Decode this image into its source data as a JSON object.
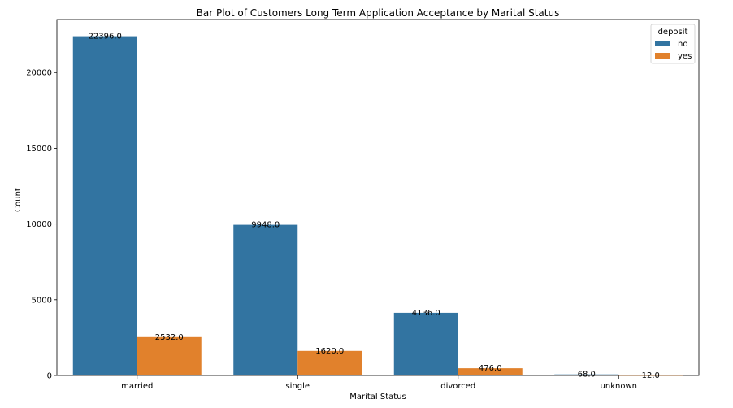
{
  "chart_data": {
    "type": "bar",
    "title": "Bar Plot of Customers Long Term Application Acceptance by Marital Status",
    "xlabel": "Marital Status",
    "ylabel": "Count",
    "categories": [
      "married",
      "single",
      "divorced",
      "unknown"
    ],
    "series": [
      {
        "name": "no",
        "color": "#3274a1",
        "values": [
          22396,
          9948,
          4136,
          68
        ]
      },
      {
        "name": "yes",
        "color": "#e1812c",
        "values": [
          2532,
          1620,
          476,
          12
        ]
      }
    ],
    "data_labels": [
      [
        "22396.0",
        "9948.0",
        "4136.0",
        "68.0"
      ],
      [
        "2532.0",
        "1620.0",
        "476.0",
        "12.0"
      ]
    ],
    "ylim": [
      0,
      23500
    ],
    "yticks": [
      0,
      5000,
      10000,
      15000,
      20000
    ],
    "grid": false,
    "legend": {
      "title": "deposit",
      "position": "top-right"
    }
  }
}
